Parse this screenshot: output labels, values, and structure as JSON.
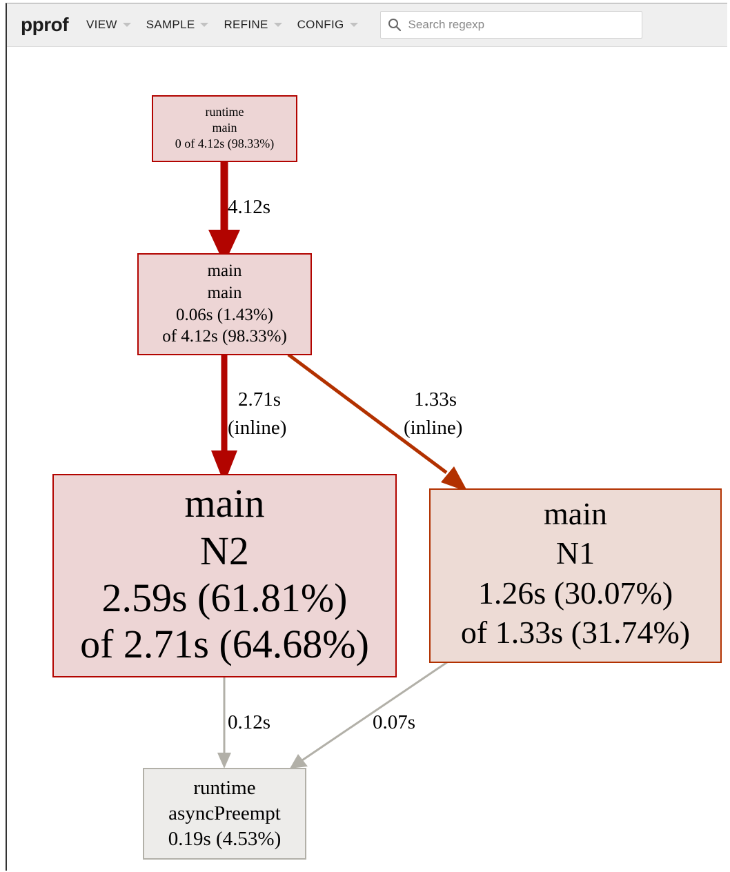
{
  "app": {
    "title": "pprof"
  },
  "menus": [
    {
      "label": "VIEW"
    },
    {
      "label": "SAMPLE"
    },
    {
      "label": "REFINE"
    },
    {
      "label": "CONFIG"
    }
  ],
  "search": {
    "placeholder": "Search regexp",
    "value": "",
    "icon": "search-icon"
  },
  "graph": {
    "nodes": [
      {
        "id": "runtime-main",
        "lines": [
          "runtime",
          "main",
          "0 of 4.12s (98.33%)"
        ],
        "fill": "#edd5d5",
        "stroke": "#b20400"
      },
      {
        "id": "main-main",
        "lines": [
          "main",
          "main",
          "0.06s (1.43%)",
          "of 4.12s (98.33%)"
        ],
        "fill": "#edd5d5",
        "stroke": "#b20400"
      },
      {
        "id": "main-N2",
        "lines": [
          "main",
          "N2",
          "2.59s (61.81%)",
          "of 2.71s (64.68%)"
        ],
        "fill": "#edd5d5",
        "stroke": "#b20400"
      },
      {
        "id": "main-N1",
        "lines": [
          "main",
          "N1",
          "1.26s (30.07%)",
          "of 1.33s (31.74%)"
        ],
        "fill": "#eddbd5",
        "stroke": "#b23100"
      },
      {
        "id": "runtime-asyncPreempt",
        "lines": [
          "runtime",
          "asyncPreempt",
          "0.19s (4.53%)"
        ],
        "fill": "#edecea",
        "stroke": "#b2b0a8"
      }
    ],
    "edges": [
      {
        "id": "runtime-main-to-main-main",
        "lines": [
          "4.12s"
        ],
        "color": "#b20400"
      },
      {
        "id": "main-main-to-main-N2",
        "lines": [
          "2.71s",
          "(inline)"
        ],
        "color": "#b20400"
      },
      {
        "id": "main-main-to-main-N1",
        "lines": [
          "1.33s",
          "(inline)"
        ],
        "color": "#b23100"
      },
      {
        "id": "main-N2-to-runtime-asyncPreempt",
        "lines": [
          "0.12s"
        ],
        "color": "#b2b0a8"
      },
      {
        "id": "main-N1-to-runtime-asyncPreempt",
        "lines": [
          "0.07s"
        ],
        "color": "#b2b0a8"
      }
    ]
  }
}
